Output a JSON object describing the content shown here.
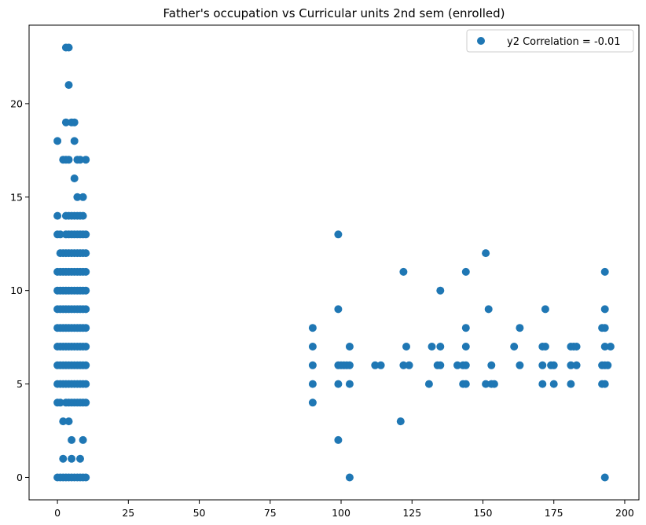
{
  "chart_data": {
    "type": "scatter",
    "title": "Father's occupation vs Curricular units 2nd sem (enrolled)",
    "xlabel": "",
    "ylabel": "",
    "xlim": [
      -10,
      205
    ],
    "ylim": [
      -1.2,
      24.2
    ],
    "xticks": [
      0,
      25,
      50,
      75,
      100,
      125,
      150,
      175,
      200
    ],
    "yticks": [
      0,
      5,
      10,
      15,
      20
    ],
    "grid": false,
    "legend_position": "top-right",
    "colors": {
      "series": "#1f77b4",
      "axes": "#000000",
      "legend_border": "#cccccc"
    },
    "series": [
      {
        "name": "y2 Correlation = -0.01",
        "points": [
          [
            3,
            23
          ],
          [
            4,
            23
          ],
          [
            4,
            21
          ],
          [
            3,
            19
          ],
          [
            5,
            19
          ],
          [
            6,
            19
          ],
          [
            0,
            18
          ],
          [
            6,
            18
          ],
          [
            2,
            17
          ],
          [
            3,
            17
          ],
          [
            4,
            17
          ],
          [
            7,
            17
          ],
          [
            8,
            17
          ],
          [
            10,
            17
          ],
          [
            6,
            16
          ],
          [
            7,
            15
          ],
          [
            9,
            15
          ],
          [
            0,
            14
          ],
          [
            3,
            14
          ],
          [
            4,
            14
          ],
          [
            5,
            14
          ],
          [
            6,
            14
          ],
          [
            7,
            14
          ],
          [
            8,
            14
          ],
          [
            9,
            14
          ],
          [
            0,
            13
          ],
          [
            1,
            13
          ],
          [
            3,
            13
          ],
          [
            4,
            13
          ],
          [
            5,
            13
          ],
          [
            6,
            13
          ],
          [
            7,
            13
          ],
          [
            8,
            13
          ],
          [
            9,
            13
          ],
          [
            10,
            13
          ],
          [
            1,
            12
          ],
          [
            2,
            12
          ],
          [
            3,
            12
          ],
          [
            4,
            12
          ],
          [
            5,
            12
          ],
          [
            6,
            12
          ],
          [
            7,
            12
          ],
          [
            8,
            12
          ],
          [
            9,
            12
          ],
          [
            10,
            12
          ],
          [
            0,
            11
          ],
          [
            1,
            11
          ],
          [
            2,
            11
          ],
          [
            3,
            11
          ],
          [
            4,
            11
          ],
          [
            5,
            11
          ],
          [
            6,
            11
          ],
          [
            7,
            11
          ],
          [
            8,
            11
          ],
          [
            9,
            11
          ],
          [
            10,
            11
          ],
          [
            0,
            10
          ],
          [
            1,
            10
          ],
          [
            2,
            10
          ],
          [
            3,
            10
          ],
          [
            4,
            10
          ],
          [
            5,
            10
          ],
          [
            6,
            10
          ],
          [
            7,
            10
          ],
          [
            8,
            10
          ],
          [
            9,
            10
          ],
          [
            10,
            10
          ],
          [
            0,
            9
          ],
          [
            1,
            9
          ],
          [
            2,
            9
          ],
          [
            3,
            9
          ],
          [
            4,
            9
          ],
          [
            5,
            9
          ],
          [
            6,
            9
          ],
          [
            7,
            9
          ],
          [
            8,
            9
          ],
          [
            9,
            9
          ],
          [
            10,
            9
          ],
          [
            0,
            8
          ],
          [
            1,
            8
          ],
          [
            2,
            8
          ],
          [
            3,
            8
          ],
          [
            4,
            8
          ],
          [
            5,
            8
          ],
          [
            6,
            8
          ],
          [
            7,
            8
          ],
          [
            8,
            8
          ],
          [
            9,
            8
          ],
          [
            10,
            8
          ],
          [
            0,
            7
          ],
          [
            1,
            7
          ],
          [
            2,
            7
          ],
          [
            3,
            7
          ],
          [
            4,
            7
          ],
          [
            5,
            7
          ],
          [
            6,
            7
          ],
          [
            7,
            7
          ],
          [
            8,
            7
          ],
          [
            9,
            7
          ],
          [
            10,
            7
          ],
          [
            0,
            6
          ],
          [
            1,
            6
          ],
          [
            2,
            6
          ],
          [
            3,
            6
          ],
          [
            4,
            6
          ],
          [
            5,
            6
          ],
          [
            6,
            6
          ],
          [
            7,
            6
          ],
          [
            8,
            6
          ],
          [
            9,
            6
          ],
          [
            10,
            6
          ],
          [
            0,
            5
          ],
          [
            1,
            5
          ],
          [
            2,
            5
          ],
          [
            3,
            5
          ],
          [
            4,
            5
          ],
          [
            5,
            5
          ],
          [
            6,
            5
          ],
          [
            7,
            5
          ],
          [
            8,
            5
          ],
          [
            9,
            5
          ],
          [
            10,
            5
          ],
          [
            0,
            4
          ],
          [
            1,
            4
          ],
          [
            3,
            4
          ],
          [
            4,
            4
          ],
          [
            5,
            4
          ],
          [
            6,
            4
          ],
          [
            7,
            4
          ],
          [
            8,
            4
          ],
          [
            9,
            4
          ],
          [
            10,
            4
          ],
          [
            2,
            3
          ],
          [
            4,
            3
          ],
          [
            5,
            2
          ],
          [
            9,
            2
          ],
          [
            2,
            1
          ],
          [
            5,
            1
          ],
          [
            8,
            1
          ],
          [
            0,
            0
          ],
          [
            1,
            0
          ],
          [
            2,
            0
          ],
          [
            3,
            0
          ],
          [
            4,
            0
          ],
          [
            5,
            0
          ],
          [
            6,
            0
          ],
          [
            7,
            0
          ],
          [
            8,
            0
          ],
          [
            9,
            0
          ],
          [
            10,
            0
          ],
          [
            90,
            8
          ],
          [
            90,
            7
          ],
          [
            90,
            6
          ],
          [
            90,
            5
          ],
          [
            90,
            4
          ],
          [
            99,
            13
          ],
          [
            99,
            9
          ],
          [
            99,
            6
          ],
          [
            99,
            5
          ],
          [
            99,
            2
          ],
          [
            100,
            6
          ],
          [
            101,
            6
          ],
          [
            102,
            6
          ],
          [
            103,
            7
          ],
          [
            103,
            6
          ],
          [
            103,
            5
          ],
          [
            103,
            0
          ],
          [
            112,
            6
          ],
          [
            114,
            6
          ],
          [
            121,
            3
          ],
          [
            122,
            11
          ],
          [
            122,
            6
          ],
          [
            123,
            7
          ],
          [
            124,
            6
          ],
          [
            131,
            5
          ],
          [
            132,
            7
          ],
          [
            134,
            6
          ],
          [
            135,
            10
          ],
          [
            135,
            7
          ],
          [
            135,
            6
          ],
          [
            141,
            6
          ],
          [
            143,
            6
          ],
          [
            143,
            5
          ],
          [
            144,
            11
          ],
          [
            144,
            8
          ],
          [
            144,
            7
          ],
          [
            144,
            6
          ],
          [
            144,
            5
          ],
          [
            151,
            12
          ],
          [
            151,
            5
          ],
          [
            152,
            9
          ],
          [
            153,
            6
          ],
          [
            153,
            5
          ],
          [
            154,
            5
          ],
          [
            161,
            7
          ],
          [
            163,
            8
          ],
          [
            163,
            6
          ],
          [
            171,
            7
          ],
          [
            171,
            6
          ],
          [
            171,
            5
          ],
          [
            172,
            9
          ],
          [
            172,
            7
          ],
          [
            174,
            6
          ],
          [
            175,
            6
          ],
          [
            175,
            5
          ],
          [
            181,
            7
          ],
          [
            181,
            6
          ],
          [
            181,
            5
          ],
          [
            182,
            7
          ],
          [
            183,
            7
          ],
          [
            183,
            6
          ],
          [
            192,
            8
          ],
          [
            192,
            6
          ],
          [
            192,
            5
          ],
          [
            193,
            11
          ],
          [
            193,
            9
          ],
          [
            193,
            8
          ],
          [
            193,
            7
          ],
          [
            193,
            6
          ],
          [
            193,
            5
          ],
          [
            193,
            0
          ],
          [
            194,
            6
          ],
          [
            195,
            7
          ]
        ]
      }
    ]
  }
}
